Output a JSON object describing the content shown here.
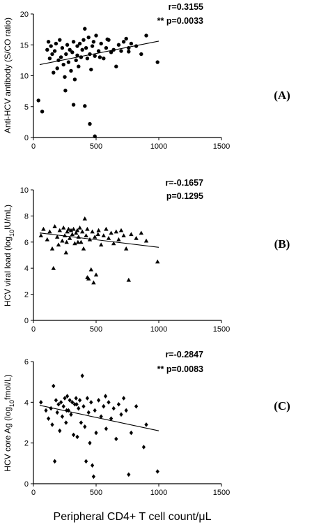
{
  "figure": {
    "xlabel": "Peripheral CD4+ T cell count/μL"
  },
  "chart_data": [
    {
      "type": "scatter",
      "panel_label": "(A)",
      "ylabel": "Anti-HCV antibody (S/CO ratio)",
      "ylabel_parts": [
        {
          "text": "Anti-HCV antibody (S/CO ratio)",
          "sub": false
        }
      ],
      "stat_r": "r=0.3155",
      "stat_p": "** p=0.0033",
      "marker": "circle",
      "xlim": [
        0,
        1500
      ],
      "ylim": [
        0,
        20
      ],
      "xticks": [
        0,
        500,
        1000,
        1500
      ],
      "yticks": [
        0,
        5,
        10,
        15,
        20
      ],
      "trend_line": {
        "x": [
          50,
          1000
        ],
        "y": [
          11.8,
          15.6
        ]
      },
      "points": [
        {
          "x": 40,
          "y": 6.0
        },
        {
          "x": 70,
          "y": 4.2
        },
        {
          "x": 110,
          "y": 14.2
        },
        {
          "x": 120,
          "y": 15.5
        },
        {
          "x": 130,
          "y": 12.8
        },
        {
          "x": 140,
          "y": 14.8
        },
        {
          "x": 150,
          "y": 13.5
        },
        {
          "x": 160,
          "y": 10.5
        },
        {
          "x": 170,
          "y": 14.0
        },
        {
          "x": 180,
          "y": 15.2
        },
        {
          "x": 190,
          "y": 11.2
        },
        {
          "x": 200,
          "y": 12.5
        },
        {
          "x": 210,
          "y": 15.8
        },
        {
          "x": 220,
          "y": 13.0
        },
        {
          "x": 230,
          "y": 14.5
        },
        {
          "x": 240,
          "y": 11.8
        },
        {
          "x": 250,
          "y": 9.8
        },
        {
          "x": 255,
          "y": 7.6
        },
        {
          "x": 260,
          "y": 13.5
        },
        {
          "x": 270,
          "y": 15.0
        },
        {
          "x": 280,
          "y": 12.2
        },
        {
          "x": 290,
          "y": 14.2
        },
        {
          "x": 300,
          "y": 10.8
        },
        {
          "x": 310,
          "y": 13.8
        },
        {
          "x": 320,
          "y": 15.5
        },
        {
          "x": 330,
          "y": 9.4
        },
        {
          "x": 340,
          "y": 12.5
        },
        {
          "x": 350,
          "y": 14.8
        },
        {
          "x": 360,
          "y": 11.5
        },
        {
          "x": 370,
          "y": 15.2
        },
        {
          "x": 380,
          "y": 13.0
        },
        {
          "x": 390,
          "y": 14.2
        },
        {
          "x": 400,
          "y": 15.8
        },
        {
          "x": 410,
          "y": 17.6
        },
        {
          "x": 420,
          "y": 14.5
        },
        {
          "x": 430,
          "y": 12.8
        },
        {
          "x": 440,
          "y": 16.2
        },
        {
          "x": 450,
          "y": 13.5
        },
        {
          "x": 460,
          "y": 11.0
        },
        {
          "x": 470,
          "y": 14.8
        },
        {
          "x": 480,
          "y": 15.5
        },
        {
          "x": 490,
          "y": 13.2
        },
        {
          "x": 500,
          "y": 16.5
        },
        {
          "x": 520,
          "y": 14.0
        },
        {
          "x": 540,
          "y": 15.2
        },
        {
          "x": 560,
          "y": 12.8
        },
        {
          "x": 580,
          "y": 14.5
        },
        {
          "x": 600,
          "y": 15.8
        },
        {
          "x": 620,
          "y": 13.8
        },
        {
          "x": 640,
          "y": 14.2
        },
        {
          "x": 660,
          "y": 11.5
        },
        {
          "x": 680,
          "y": 15.0
        },
        {
          "x": 700,
          "y": 14.0
        },
        {
          "x": 720,
          "y": 15.5
        },
        {
          "x": 740,
          "y": 16.0
        },
        {
          "x": 760,
          "y": 14.5
        },
        {
          "x": 780,
          "y": 15.2
        },
        {
          "x": 820,
          "y": 14.8
        },
        {
          "x": 860,
          "y": 13.5
        },
        {
          "x": 900,
          "y": 16.5
        },
        {
          "x": 990,
          "y": 12.2
        },
        {
          "x": 320,
          "y": 5.3
        },
        {
          "x": 410,
          "y": 5.1
        },
        {
          "x": 450,
          "y": 2.2
        },
        {
          "x": 490,
          "y": 0.2
        },
        {
          "x": 350,
          "y": 13.3
        },
        {
          "x": 530,
          "y": 13.0
        },
        {
          "x": 590,
          "y": 15.9
        },
        {
          "x": 760,
          "y": 13.9
        }
      ]
    },
    {
      "type": "scatter",
      "panel_label": "(B)",
      "ylabel": "HCV viral load (log10IU/mL)",
      "ylabel_parts": [
        {
          "text": "HCV viral load (log",
          "sub": false
        },
        {
          "text": "10",
          "sub": true
        },
        {
          "text": "IU/mL)",
          "sub": false
        }
      ],
      "stat_r": "r=-0.1657",
      "stat_p": "p=0.1295",
      "marker": "triangle",
      "xlim": [
        0,
        1500
      ],
      "ylim": [
        0,
        10
      ],
      "xticks": [
        0,
        500,
        1000,
        1500
      ],
      "yticks": [
        0,
        2,
        4,
        6,
        8,
        10
      ],
      "trend_line": {
        "x": [
          50,
          1000
        ],
        "y": [
          6.7,
          5.6
        ]
      },
      "points": [
        {
          "x": 60,
          "y": 6.5
        },
        {
          "x": 80,
          "y": 7.0
        },
        {
          "x": 110,
          "y": 6.2
        },
        {
          "x": 130,
          "y": 6.8
        },
        {
          "x": 150,
          "y": 5.5
        },
        {
          "x": 160,
          "y": 4.0
        },
        {
          "x": 170,
          "y": 7.2
        },
        {
          "x": 190,
          "y": 6.4
        },
        {
          "x": 200,
          "y": 5.8
        },
        {
          "x": 210,
          "y": 6.9
        },
        {
          "x": 230,
          "y": 6.1
        },
        {
          "x": 240,
          "y": 7.1
        },
        {
          "x": 250,
          "y": 6.5
        },
        {
          "x": 260,
          "y": 5.2
        },
        {
          "x": 270,
          "y": 6.8
        },
        {
          "x": 280,
          "y": 7.0
        },
        {
          "x": 290,
          "y": 6.3
        },
        {
          "x": 300,
          "y": 6.9
        },
        {
          "x": 310,
          "y": 6.6
        },
        {
          "x": 320,
          "y": 7.0
        },
        {
          "x": 330,
          "y": 5.9
        },
        {
          "x": 340,
          "y": 6.7
        },
        {
          "x": 350,
          "y": 6.9
        },
        {
          "x": 360,
          "y": 6.4
        },
        {
          "x": 370,
          "y": 7.1
        },
        {
          "x": 380,
          "y": 6.0
        },
        {
          "x": 390,
          "y": 6.8
        },
        {
          "x": 400,
          "y": 5.5
        },
        {
          "x": 410,
          "y": 7.8
        },
        {
          "x": 420,
          "y": 6.5
        },
        {
          "x": 430,
          "y": 7.0
        },
        {
          "x": 440,
          "y": 3.2
        },
        {
          "x": 450,
          "y": 6.2
        },
        {
          "x": 460,
          "y": 3.9
        },
        {
          "x": 470,
          "y": 6.8
        },
        {
          "x": 480,
          "y": 2.9
        },
        {
          "x": 490,
          "y": 6.4
        },
        {
          "x": 500,
          "y": 3.5
        },
        {
          "x": 520,
          "y": 6.9
        },
        {
          "x": 540,
          "y": 5.8
        },
        {
          "x": 560,
          "y": 6.5
        },
        {
          "x": 580,
          "y": 7.0
        },
        {
          "x": 600,
          "y": 6.3
        },
        {
          "x": 620,
          "y": 6.7
        },
        {
          "x": 640,
          "y": 5.9
        },
        {
          "x": 660,
          "y": 6.8
        },
        {
          "x": 680,
          "y": 6.2
        },
        {
          "x": 700,
          "y": 6.9
        },
        {
          "x": 720,
          "y": 6.5
        },
        {
          "x": 740,
          "y": 5.5
        },
        {
          "x": 760,
          "y": 3.1
        },
        {
          "x": 780,
          "y": 6.6
        },
        {
          "x": 820,
          "y": 6.3
        },
        {
          "x": 860,
          "y": 6.7
        },
        {
          "x": 900,
          "y": 6.1
        },
        {
          "x": 990,
          "y": 4.5
        },
        {
          "x": 430,
          "y": 3.3
        },
        {
          "x": 355,
          "y": 6.0
        },
        {
          "x": 515,
          "y": 6.6
        },
        {
          "x": 265,
          "y": 6.0
        }
      ]
    },
    {
      "type": "scatter",
      "panel_label": "(C)",
      "ylabel": "HCV core Ag (log10fmol/L)",
      "ylabel_parts": [
        {
          "text": "HCV core Ag (log",
          "sub": false
        },
        {
          "text": "10",
          "sub": true
        },
        {
          "text": "fmol/L)",
          "sub": false
        }
      ],
      "stat_r": "r=-0.2847",
      "stat_p": "** p=0.0083",
      "marker": "diamond",
      "xlim": [
        0,
        1500
      ],
      "ylim": [
        0,
        6
      ],
      "xticks": [
        0,
        500,
        1000,
        1500
      ],
      "yticks": [
        0,
        2,
        4,
        6
      ],
      "trend_line": {
        "x": [
          50,
          1000
        ],
        "y": [
          3.85,
          2.6
        ]
      },
      "points": [
        {
          "x": 60,
          "y": 4.0
        },
        {
          "x": 100,
          "y": 3.6
        },
        {
          "x": 120,
          "y": 3.2
        },
        {
          "x": 140,
          "y": 3.7
        },
        {
          "x": 150,
          "y": 2.9
        },
        {
          "x": 160,
          "y": 4.8
        },
        {
          "x": 170,
          "y": 1.1
        },
        {
          "x": 180,
          "y": 4.1
        },
        {
          "x": 190,
          "y": 3.5
        },
        {
          "x": 200,
          "y": 3.9
        },
        {
          "x": 210,
          "y": 2.6
        },
        {
          "x": 220,
          "y": 4.0
        },
        {
          "x": 230,
          "y": 3.3
        },
        {
          "x": 240,
          "y": 3.8
        },
        {
          "x": 250,
          "y": 4.2
        },
        {
          "x": 260,
          "y": 3.0
        },
        {
          "x": 270,
          "y": 4.3
        },
        {
          "x": 280,
          "y": 3.6
        },
        {
          "x": 290,
          "y": 4.1
        },
        {
          "x": 300,
          "y": 3.4
        },
        {
          "x": 310,
          "y": 4.0
        },
        {
          "x": 320,
          "y": 2.4
        },
        {
          "x": 330,
          "y": 3.9
        },
        {
          "x": 340,
          "y": 4.2
        },
        {
          "x": 350,
          "y": 2.3
        },
        {
          "x": 360,
          "y": 3.7
        },
        {
          "x": 370,
          "y": 4.1
        },
        {
          "x": 380,
          "y": 3.0
        },
        {
          "x": 390,
          "y": 5.3
        },
        {
          "x": 400,
          "y": 3.8
        },
        {
          "x": 410,
          "y": 2.8
        },
        {
          "x": 420,
          "y": 1.1
        },
        {
          "x": 430,
          "y": 4.2
        },
        {
          "x": 440,
          "y": 3.5
        },
        {
          "x": 450,
          "y": 2.0
        },
        {
          "x": 460,
          "y": 4.0
        },
        {
          "x": 470,
          "y": 0.9
        },
        {
          "x": 480,
          "y": 0.35
        },
        {
          "x": 490,
          "y": 3.6
        },
        {
          "x": 500,
          "y": 2.5
        },
        {
          "x": 520,
          "y": 4.1
        },
        {
          "x": 540,
          "y": 3.3
        },
        {
          "x": 560,
          "y": 3.8
        },
        {
          "x": 580,
          "y": 2.7
        },
        {
          "x": 600,
          "y": 4.0
        },
        {
          "x": 620,
          "y": 3.2
        },
        {
          "x": 640,
          "y": 3.7
        },
        {
          "x": 660,
          "y": 2.2
        },
        {
          "x": 680,
          "y": 3.9
        },
        {
          "x": 700,
          "y": 3.4
        },
        {
          "x": 720,
          "y": 4.2
        },
        {
          "x": 740,
          "y": 3.6
        },
        {
          "x": 760,
          "y": 0.45
        },
        {
          "x": 780,
          "y": 2.5
        },
        {
          "x": 820,
          "y": 3.8
        },
        {
          "x": 880,
          "y": 1.8
        },
        {
          "x": 900,
          "y": 2.9
        },
        {
          "x": 990,
          "y": 0.6
        },
        {
          "x": 345,
          "y": 3.9
        },
        {
          "x": 575,
          "y": 4.3
        },
        {
          "x": 265,
          "y": 3.6
        }
      ]
    }
  ]
}
